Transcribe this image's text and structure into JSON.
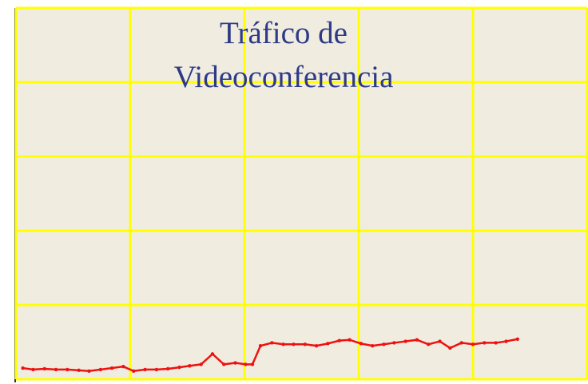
{
  "chart_data": {
    "type": "line",
    "title": "Tráfico de Videoconferencia",
    "x": [
      0.06,
      0.15,
      0.25,
      0.35,
      0.45,
      0.55,
      0.64,
      0.74,
      0.84,
      0.94,
      1.03,
      1.13,
      1.23,
      1.33,
      1.43,
      1.52,
      1.62,
      1.72,
      1.82,
      1.92,
      2.01,
      2.07,
      2.14,
      2.24,
      2.34,
      2.43,
      2.53,
      2.63,
      2.73,
      2.83,
      2.92,
      3.02,
      3.12,
      3.22,
      3.31,
      3.41,
      3.51,
      3.61,
      3.71,
      3.8,
      3.9,
      4.0,
      4.1,
      4.2,
      4.29,
      4.39
    ],
    "series": [
      {
        "color": "#ee1111",
        "values": [
          0.15,
          0.13,
          0.14,
          0.13,
          0.13,
          0.12,
          0.11,
          0.13,
          0.15,
          0.17,
          0.11,
          0.13,
          0.13,
          0.14,
          0.16,
          0.18,
          0.2,
          0.34,
          0.2,
          0.22,
          0.2,
          0.2,
          0.45,
          0.49,
          0.47,
          0.47,
          0.47,
          0.45,
          0.48,
          0.52,
          0.53,
          0.48,
          0.45,
          0.47,
          0.49,
          0.51,
          0.53,
          0.47,
          0.51,
          0.42,
          0.49,
          0.47,
          0.49,
          0.49,
          0.51,
          0.54
        ]
      }
    ],
    "xlim": [
      0,
      5
    ],
    "ylim": [
      0,
      5
    ],
    "xticks": [
      0,
      1,
      2,
      3,
      4,
      5
    ],
    "yticks": [
      0,
      1,
      2,
      3,
      4,
      5
    ],
    "grid": true,
    "grid_color": "#ffff00",
    "background": "#f0ede0"
  }
}
